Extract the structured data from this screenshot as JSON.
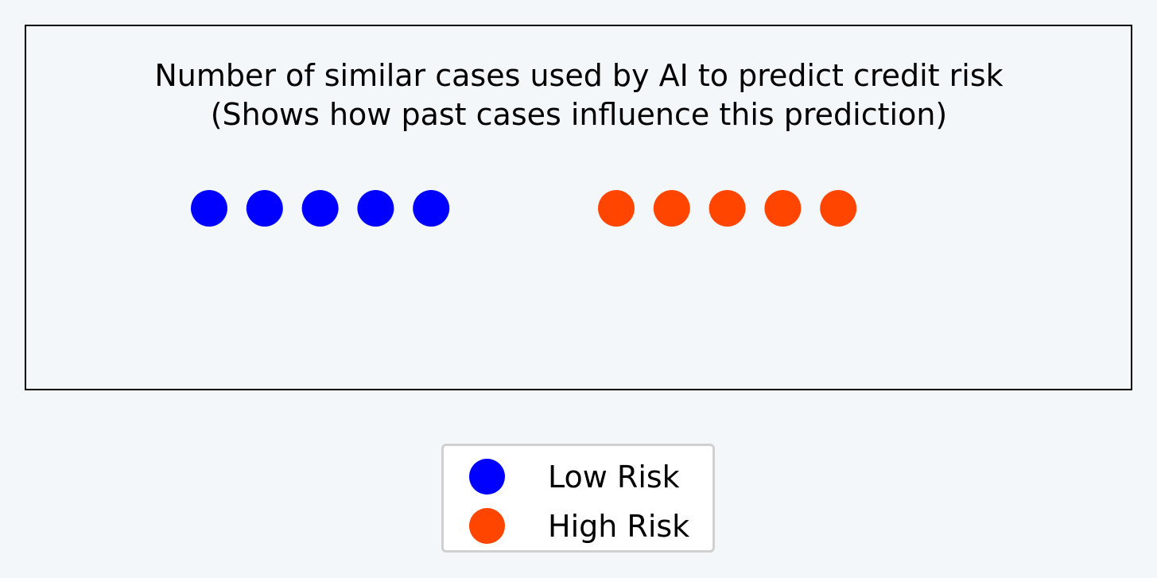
{
  "chart_data": {
    "type": "scatter",
    "title": [
      "Number of similar cases used by AI to predict credit risk",
      "(Shows how past cases influence this prediction)"
    ],
    "xlabel": "",
    "ylabel": "",
    "grid": false,
    "axes_ticks": false,
    "legend_placement": "bottom-center, outside",
    "series": [
      {
        "name": "Low Risk",
        "color": "#0000ff",
        "count": 5
      },
      {
        "name": "High Risk",
        "color": "#ff4500",
        "count": 5
      }
    ]
  }
}
